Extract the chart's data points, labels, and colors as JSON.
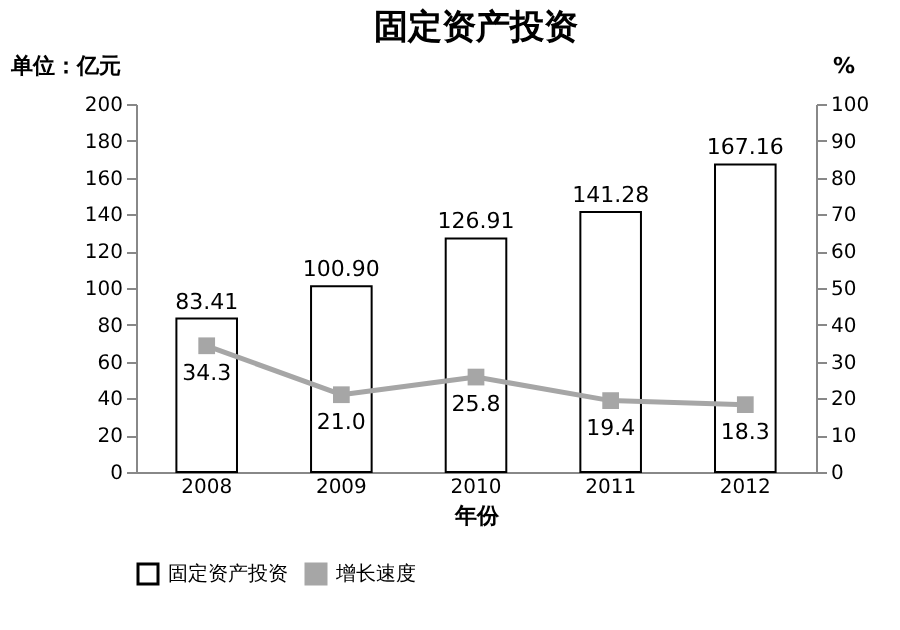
{
  "chart_data": {
    "type": "bar",
    "title": "固定资产投资",
    "xlabel": "年份",
    "ylabel": "单位：亿元",
    "y2label": "%",
    "categories": [
      "2008",
      "2009",
      "2010",
      "2011",
      "2012"
    ],
    "series": [
      {
        "name": "固定资产投资",
        "color": "#ffffff",
        "values": [
          83.41,
          100.9,
          126.91,
          141.28,
          167.16
        ],
        "value_labels": [
          "83.41",
          "100.90",
          "126.91",
          "141.28",
          "167.16"
        ]
      },
      {
        "name": "增长速度",
        "type": "line",
        "axis": "y2",
        "color": "#a6a6a6",
        "marker": "square",
        "values": [
          34.3,
          21.0,
          25.8,
          19.4,
          18.3
        ],
        "value_labels": [
          "34.3",
          "21.0",
          "25.8",
          "19.4",
          "18.3"
        ]
      }
    ],
    "ylim": [
      0,
      200
    ],
    "yticks": [
      0,
      20,
      40,
      60,
      80,
      100,
      120,
      140,
      160,
      180,
      200
    ],
    "y2lim": [
      0,
      100
    ],
    "y2ticks": [
      0,
      10,
      20,
      30,
      40,
      50,
      60,
      70,
      80,
      90,
      100
    ],
    "legend": "bottom",
    "grid": false
  }
}
